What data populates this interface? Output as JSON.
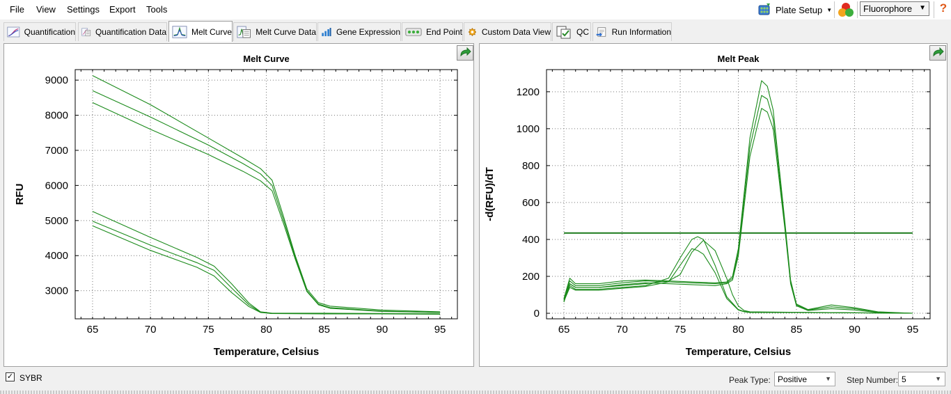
{
  "menu": [
    "File",
    "View",
    "Settings",
    "Export",
    "Tools"
  ],
  "toolbar": {
    "plate_setup": "Plate Setup",
    "fluorophore": "Fluorophore",
    "help": "?"
  },
  "tabs": [
    {
      "label": "Quantification",
      "icon": "amplification-icon",
      "active": false
    },
    {
      "label": "Quantification Data",
      "icon": "data-sheet-icon",
      "active": false
    },
    {
      "label": "Melt Curve",
      "icon": "melt-curve-icon",
      "active": true
    },
    {
      "label": "Melt Curve Data",
      "icon": "melt-data-icon",
      "active": false
    },
    {
      "label": "Gene Expression",
      "icon": "bar-chart-icon",
      "active": false
    },
    {
      "label": "End Point",
      "icon": "end-point-icon",
      "active": false
    },
    {
      "label": "Custom Data View",
      "icon": "gear-icon",
      "active": false
    },
    {
      "label": "QC",
      "icon": "qc-checklist-icon",
      "active": false
    },
    {
      "label": "Run Information",
      "icon": "run-info-icon",
      "active": false
    }
  ],
  "status": {
    "sybr_label": "SYBR",
    "sybr_checked": true,
    "peak_type_label": "Peak Type:",
    "peak_type_value": "Positive",
    "step_number_label": "Step Number:",
    "step_number_value": "5"
  },
  "colors": {
    "curve": "#1a8a1a",
    "threshold": "#1a7a1a"
  },
  "chart_data": [
    {
      "type": "line",
      "title": "Melt Curve",
      "xlabel": "Temperature, Celsius",
      "ylabel": "RFU",
      "xlim": [
        63.5,
        96.5
      ],
      "ylim": [
        2200,
        9300
      ],
      "xticks": [
        65,
        70,
        75,
        80,
        85,
        90,
        95
      ],
      "yticks": [
        3000,
        4000,
        5000,
        6000,
        7000,
        8000,
        9000
      ],
      "grid": true,
      "x": [
        65,
        70,
        75,
        78,
        79.5,
        80.5,
        81.5,
        82.5,
        83.5,
        84.5,
        85.5,
        90,
        95
      ],
      "series": [
        {
          "values": [
            9130,
            8300,
            7350,
            6780,
            6480,
            6150,
            5100,
            4000,
            3050,
            2660,
            2560,
            2450,
            2400
          ]
        },
        {
          "values": [
            8700,
            7950,
            7150,
            6620,
            6330,
            6000,
            5000,
            3950,
            3000,
            2620,
            2520,
            2420,
            2380
          ]
        },
        {
          "values": [
            8360,
            7600,
            6880,
            6400,
            6130,
            5850,
            4900,
            3900,
            2980,
            2600,
            2500,
            2410,
            2380
          ]
        },
        {
          "x": [
            65,
            70,
            74,
            75.5,
            77,
            78.5,
            79.5,
            80.5,
            85,
            90,
            95
          ],
          "values": [
            5260,
            4520,
            3950,
            3700,
            3200,
            2650,
            2400,
            2360,
            2360,
            2350,
            2340
          ]
        },
        {
          "x": [
            65,
            70,
            74,
            75.5,
            77,
            78.5,
            79.5,
            80.5,
            85,
            90,
            95
          ],
          "values": [
            4980,
            4300,
            3800,
            3580,
            3080,
            2600,
            2390,
            2350,
            2350,
            2350,
            2340
          ]
        },
        {
          "x": [
            65,
            70,
            74,
            75.5,
            77,
            78.5,
            79.5,
            80.5,
            85,
            90,
            95
          ],
          "values": [
            4850,
            4150,
            3670,
            3420,
            2950,
            2550,
            2380,
            2350,
            2340,
            2340,
            2330
          ]
        }
      ]
    },
    {
      "type": "line",
      "title": "Melt Peak",
      "xlabel": "Temperature, Celsius",
      "ylabel": "-d(RFU)/dT",
      "xlim": [
        63.5,
        96.5
      ],
      "ylim": [
        -30,
        1320
      ],
      "xticks": [
        65,
        70,
        75,
        80,
        85,
        90,
        95
      ],
      "yticks": [
        0,
        200,
        400,
        600,
        800,
        1000,
        1200
      ],
      "grid": true,
      "threshold": 435,
      "series": [
        {
          "x": [
            65,
            65.5,
            66,
            68,
            70,
            72,
            74,
            75,
            76,
            76.5,
            77,
            78,
            79,
            80,
            80.5,
            81,
            85,
            95
          ],
          "values": [
            70,
            150,
            130,
            130,
            140,
            150,
            190,
            300,
            400,
            415,
            400,
            260,
            90,
            20,
            10,
            5,
            5,
            0
          ]
        },
        {
          "x": [
            65,
            65.5,
            66,
            68,
            70,
            72,
            74,
            75,
            76,
            76.5,
            77,
            78,
            79,
            80,
            80.5,
            81,
            85,
            95
          ],
          "values": [
            65,
            140,
            125,
            125,
            135,
            145,
            170,
            260,
            350,
            340,
            320,
            220,
            80,
            18,
            8,
            4,
            4,
            0
          ]
        },
        {
          "x": [
            65,
            65.5,
            66,
            68,
            70,
            72,
            74,
            75,
            76,
            77,
            78,
            79,
            79.5,
            80,
            80.5,
            81,
            85,
            95
          ],
          "values": [
            60,
            160,
            140,
            140,
            150,
            160,
            175,
            210,
            330,
            395,
            340,
            190,
            100,
            40,
            15,
            8,
            5,
            0
          ]
        },
        {
          "x": [
            65,
            65.5,
            66,
            68,
            70,
            72,
            74,
            76,
            78,
            79,
            79.5,
            80,
            81,
            82,
            82.5,
            83,
            84,
            84.5,
            85,
            86,
            88,
            90,
            92,
            95
          ],
          "values": [
            80,
            190,
            160,
            160,
            175,
            180,
            175,
            170,
            165,
            170,
            200,
            350,
            950,
            1260,
            1230,
            1100,
            500,
            180,
            50,
            20,
            45,
            30,
            8,
            0
          ]
        },
        {
          "x": [
            65,
            65.5,
            66,
            68,
            70,
            72,
            74,
            76,
            78,
            79,
            79.5,
            80,
            81,
            82,
            82.5,
            83,
            84,
            84.5,
            85,
            86,
            88,
            90,
            92,
            95
          ],
          "values": [
            75,
            175,
            150,
            150,
            165,
            175,
            170,
            165,
            160,
            165,
            190,
            330,
            900,
            1180,
            1160,
            1050,
            480,
            170,
            45,
            18,
            35,
            25,
            6,
            0
          ]
        },
        {
          "x": [
            65,
            65.5,
            66,
            68,
            70,
            72,
            74,
            76,
            78,
            79,
            79.5,
            80,
            81,
            82,
            82.5,
            83,
            84,
            84.5,
            85,
            86,
            88,
            90,
            92,
            95
          ],
          "values": [
            70,
            160,
            140,
            140,
            155,
            165,
            160,
            155,
            150,
            160,
            180,
            310,
            850,
            1110,
            1090,
            1000,
            460,
            160,
            40,
            15,
            25,
            18,
            4,
            0
          ]
        }
      ]
    }
  ]
}
